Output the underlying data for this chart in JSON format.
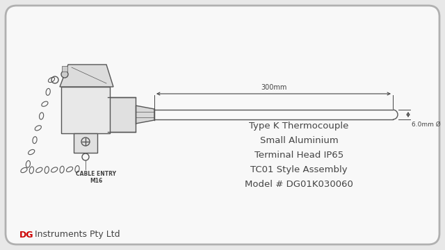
{
  "bg_color": "#e8e8e8",
  "panel_color": "#f8f8f8",
  "line_color": "#555555",
  "dim_color": "#444444",
  "text_color": "#444444",
  "red_color": "#cc0000",
  "title_lines": [
    "Type K Thermocouple",
    "Small Aluminium",
    "Terminal Head IP65",
    "TC01 Style Assembly",
    "Model # DG01K030060"
  ],
  "brand_dg": "DG",
  "brand_rest": " Instruments Pty Ltd",
  "dim_label": "300mm",
  "dia_label": "6.0mm Ø",
  "cable_label1": "CABLE ENTRY",
  "cable_label2": "M16"
}
